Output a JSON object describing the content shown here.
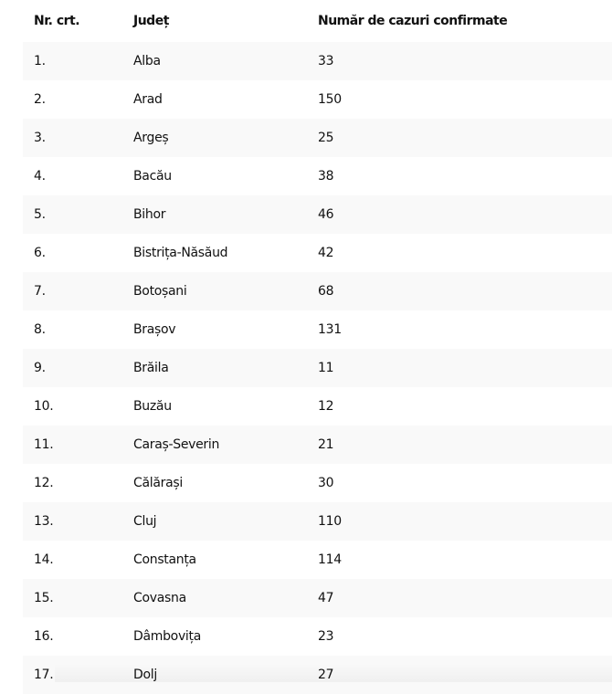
{
  "table": {
    "headers": [
      "Nr. crt.",
      "Județ",
      "Număr de cazuri confirmate"
    ],
    "rows": [
      [
        "1.",
        "Alba",
        "33"
      ],
      [
        "2.",
        "Arad",
        "150"
      ],
      [
        "3.",
        "Argeș",
        "25"
      ],
      [
        "4.",
        "Bacău",
        "38"
      ],
      [
        "5.",
        "Bihor",
        "46"
      ],
      [
        "6.",
        "Bistrița-Năsăud",
        "42"
      ],
      [
        "7.",
        "Botoșani",
        "68"
      ],
      [
        "8.",
        "Brașov",
        "131"
      ],
      [
        "9.",
        "Brăila",
        "11"
      ],
      [
        "10.",
        "Buzău",
        "12"
      ],
      [
        "11.",
        "Caraș-Severin",
        "21"
      ],
      [
        "12.",
        "Călărași",
        "30"
      ],
      [
        "13.",
        "Cluj",
        "110"
      ],
      [
        "14.",
        "Constanța",
        "114"
      ],
      [
        "15.",
        "Covasna",
        "47"
      ],
      [
        "16.",
        "Dâmbovița",
        "23"
      ],
      [
        "17.",
        "Dolj",
        "27"
      ]
    ]
  }
}
